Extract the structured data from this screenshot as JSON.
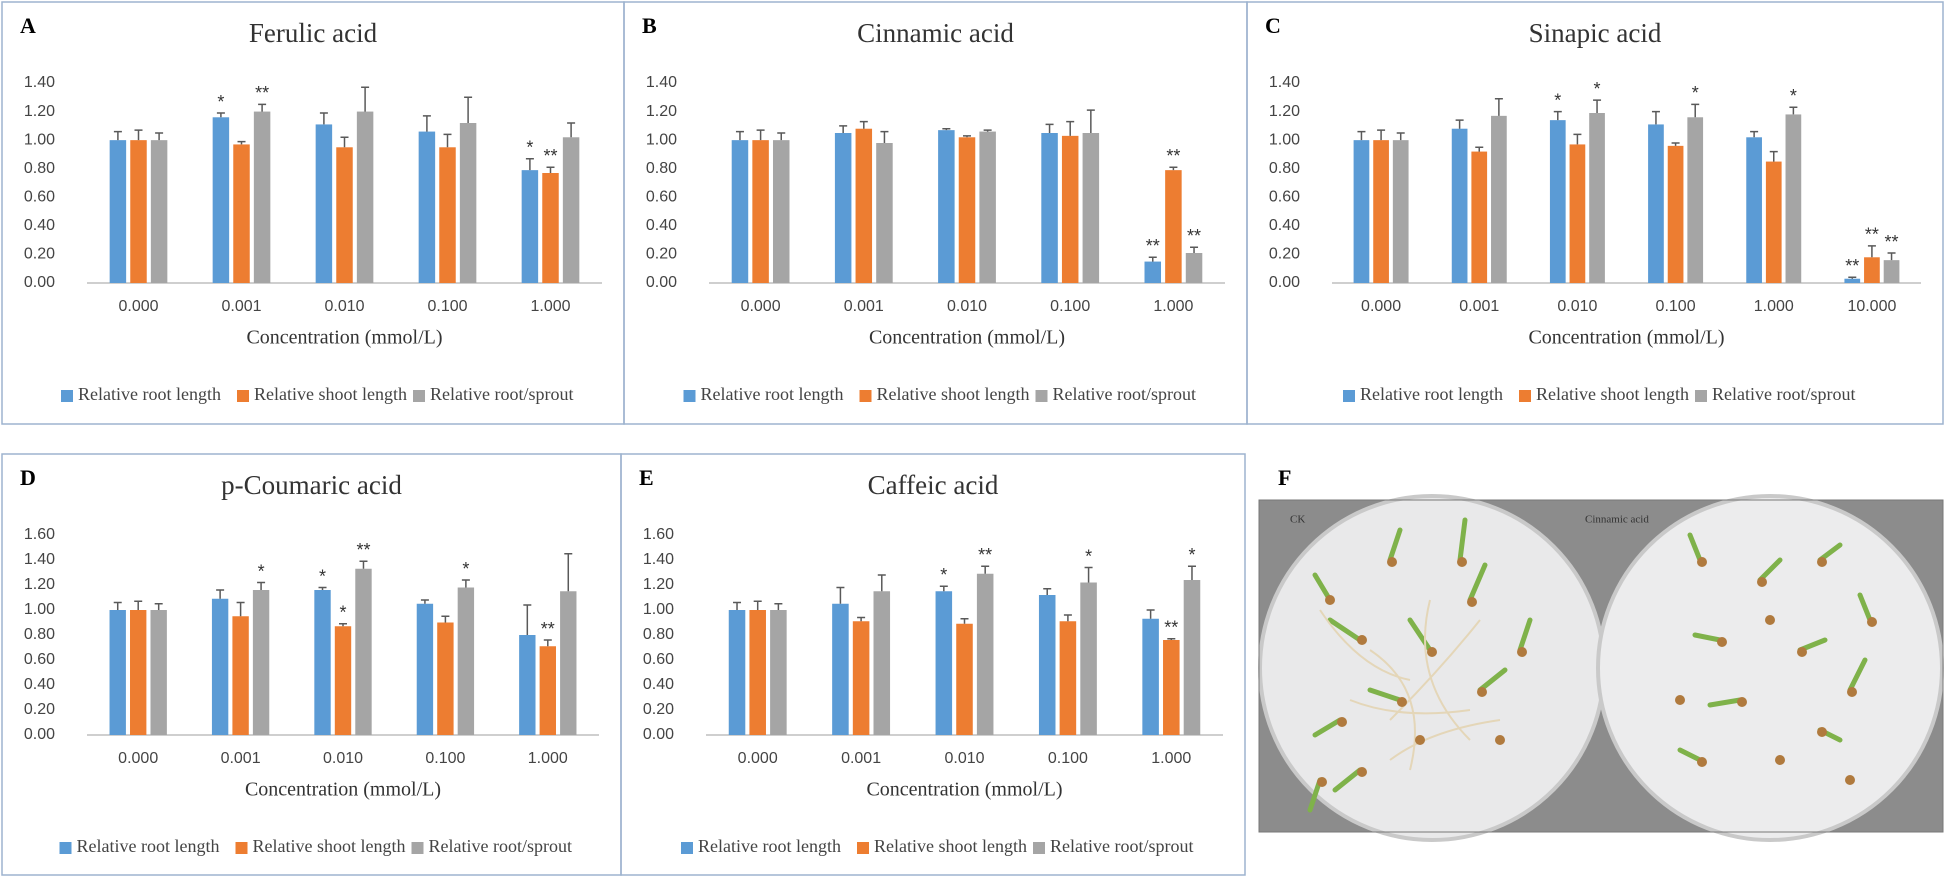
{
  "chart_data": [
    {
      "type": "bar",
      "label": "A",
      "title": "Ferulic acid",
      "xlabel": "Concentration (mmol/L)",
      "categories": [
        "0.000",
        "0.001",
        "0.010",
        "0.100",
        "1.000"
      ],
      "ylim": [
        0,
        1.4
      ],
      "yticks": [
        {
          "value": 0,
          "label": "0.00"
        },
        {
          "value": 0.2,
          "label": "0.20"
        },
        {
          "value": 0.4,
          "label": "0.40"
        },
        {
          "value": 0.6,
          "label": "0.60"
        },
        {
          "value": 0.8,
          "label": "0.80"
        },
        {
          "value": 1.0,
          "label": "1.00"
        },
        {
          "value": 1.2,
          "label": "1.20"
        },
        {
          "value": 1.4,
          "label": "1.40"
        }
      ],
      "series": [
        {
          "name": "Relative root length",
          "color": "#5b9bd5",
          "values": [
            1.0,
            1.16,
            1.11,
            1.06,
            0.79
          ],
          "errors": [
            0.06,
            0.03,
            0.08,
            0.11,
            0.08
          ],
          "annotations": [
            null,
            "*",
            null,
            null,
            "*"
          ]
        },
        {
          "name": "Relative shoot length",
          "color": "#ed7d31",
          "values": [
            1.0,
            0.97,
            0.95,
            0.95,
            0.77
          ],
          "errors": [
            0.07,
            0.02,
            0.07,
            0.09,
            0.04
          ],
          "annotations": [
            null,
            null,
            null,
            null,
            "**"
          ]
        },
        {
          "name": "Relative root/sprout",
          "color": "#a5a5a5",
          "values": [
            1.0,
            1.2,
            1.2,
            1.12,
            1.02
          ],
          "errors": [
            0.05,
            0.05,
            0.17,
            0.18,
            0.1
          ],
          "annotations": [
            null,
            "**",
            null,
            null,
            null
          ]
        }
      ]
    },
    {
      "type": "bar",
      "label": "B",
      "title": "Cinnamic acid",
      "xlabel": "Concentration (mmol/L)",
      "categories": [
        "0.000",
        "0.001",
        "0.010",
        "0.100",
        "1.000"
      ],
      "ylim": [
        0,
        1.4
      ],
      "yticks": [
        {
          "value": 0,
          "label": "0.00"
        },
        {
          "value": 0.2,
          "label": "0.20"
        },
        {
          "value": 0.4,
          "label": "0.40"
        },
        {
          "value": 0.6,
          "label": "0.60"
        },
        {
          "value": 0.8,
          "label": "0.80"
        },
        {
          "value": 1.0,
          "label": "1.00"
        },
        {
          "value": 1.2,
          "label": "1.20"
        },
        {
          "value": 1.4,
          "label": "1.40"
        }
      ],
      "series": [
        {
          "name": "Relative root length",
          "color": "#5b9bd5",
          "values": [
            1.0,
            1.05,
            1.07,
            1.05,
            0.15
          ],
          "errors": [
            0.06,
            0.05,
            0.01,
            0.06,
            0.03
          ],
          "annotations": [
            null,
            null,
            null,
            null,
            "**"
          ]
        },
        {
          "name": "Relative shoot length",
          "color": "#ed7d31",
          "values": [
            1.0,
            1.08,
            1.02,
            1.03,
            0.79
          ],
          "errors": [
            0.07,
            0.05,
            0.01,
            0.1,
            0.02
          ],
          "annotations": [
            null,
            null,
            null,
            null,
            "**"
          ]
        },
        {
          "name": "Relative root/sprout",
          "color": "#a5a5a5",
          "values": [
            1.0,
            0.98,
            1.06,
            1.05,
            0.21
          ],
          "errors": [
            0.05,
            0.08,
            0.01,
            0.16,
            0.04
          ],
          "annotations": [
            null,
            null,
            null,
            null,
            "**"
          ]
        }
      ]
    },
    {
      "type": "bar",
      "label": "C",
      "title": "Sinapic acid",
      "xlabel": "Concentration (mmol/L)",
      "categories": [
        "0.000",
        "0.001",
        "0.010",
        "0.100",
        "1.000",
        "10.000"
      ],
      "ylim": [
        0,
        1.4
      ],
      "yticks": [
        {
          "value": 0,
          "label": "0.00"
        },
        {
          "value": 0.2,
          "label": "0.20"
        },
        {
          "value": 0.4,
          "label": "0.40"
        },
        {
          "value": 0.6,
          "label": "0.60"
        },
        {
          "value": 0.8,
          "label": "0.80"
        },
        {
          "value": 1.0,
          "label": "1.00"
        },
        {
          "value": 1.2,
          "label": "1.20"
        },
        {
          "value": 1.4,
          "label": "1.40"
        }
      ],
      "series": [
        {
          "name": "Relative root length",
          "color": "#5b9bd5",
          "values": [
            1.0,
            1.08,
            1.14,
            1.11,
            1.02,
            0.03
          ],
          "errors": [
            0.06,
            0.06,
            0.06,
            0.09,
            0.04,
            0.01
          ],
          "annotations": [
            null,
            null,
            "*",
            null,
            null,
            "**"
          ]
        },
        {
          "name": "Relative shoot length",
          "color": "#ed7d31",
          "values": [
            1.0,
            0.92,
            0.97,
            0.96,
            0.85,
            0.18
          ],
          "errors": [
            0.07,
            0.03,
            0.07,
            0.02,
            0.07,
            0.08
          ],
          "annotations": [
            null,
            null,
            null,
            null,
            null,
            "**"
          ]
        },
        {
          "name": "Relative root/sprout",
          "color": "#a5a5a5",
          "values": [
            1.0,
            1.17,
            1.19,
            1.16,
            1.18,
            0.16
          ],
          "errors": [
            0.05,
            0.12,
            0.09,
            0.09,
            0.05,
            0.05
          ],
          "annotations": [
            null,
            null,
            "*",
            "*",
            "*",
            "**"
          ]
        }
      ]
    },
    {
      "type": "bar",
      "label": "D",
      "title": "p-Coumaric acid",
      "xlabel": "Concentration (mmol/L)",
      "categories": [
        "0.000",
        "0.001",
        "0.010",
        "0.100",
        "1.000"
      ],
      "ylim": [
        0,
        1.6
      ],
      "yticks": [
        {
          "value": 0,
          "label": "0.00"
        },
        {
          "value": 0.2,
          "label": "0.20"
        },
        {
          "value": 0.4,
          "label": "0.40"
        },
        {
          "value": 0.6,
          "label": "0.60"
        },
        {
          "value": 0.8,
          "label": "0.80"
        },
        {
          "value": 1.0,
          "label": "1.00"
        },
        {
          "value": 1.2,
          "label": "1.20"
        },
        {
          "value": 1.4,
          "label": "1.40"
        },
        {
          "value": 1.6,
          "label": "1.60"
        }
      ],
      "series": [
        {
          "name": "Relative root length",
          "color": "#5b9bd5",
          "values": [
            1.0,
            1.09,
            1.16,
            1.05,
            0.8
          ],
          "errors": [
            0.06,
            0.07,
            0.02,
            0.03,
            0.24
          ],
          "annotations": [
            null,
            null,
            "*",
            null,
            null
          ]
        },
        {
          "name": "Relative shoot length",
          "color": "#ed7d31",
          "values": [
            1.0,
            0.95,
            0.87,
            0.9,
            0.71
          ],
          "errors": [
            0.07,
            0.11,
            0.02,
            0.05,
            0.05
          ],
          "annotations": [
            null,
            null,
            "*",
            null,
            "**"
          ]
        },
        {
          "name": "Relative root/sprout",
          "color": "#a5a5a5",
          "values": [
            1.0,
            1.16,
            1.33,
            1.18,
            1.15
          ],
          "errors": [
            0.05,
            0.06,
            0.06,
            0.06,
            0.3
          ],
          "annotations": [
            null,
            "*",
            "**",
            "*",
            null
          ]
        }
      ]
    },
    {
      "type": "bar",
      "label": "E",
      "title": "Caffeic acid",
      "xlabel": "Concentration (mmol/L)",
      "categories": [
        "0.000",
        "0.001",
        "0.010",
        "0.100",
        "1.000"
      ],
      "ylim": [
        0,
        1.6
      ],
      "yticks": [
        {
          "value": 0,
          "label": "0.00"
        },
        {
          "value": 0.2,
          "label": "0.20"
        },
        {
          "value": 0.4,
          "label": "0.40"
        },
        {
          "value": 0.6,
          "label": "0.60"
        },
        {
          "value": 0.8,
          "label": "0.80"
        },
        {
          "value": 1.0,
          "label": "1.00"
        },
        {
          "value": 1.2,
          "label": "1.20"
        },
        {
          "value": 1.4,
          "label": "1.40"
        },
        {
          "value": 1.6,
          "label": "1.60"
        }
      ],
      "series": [
        {
          "name": "Relative root length",
          "color": "#5b9bd5",
          "values": [
            1.0,
            1.05,
            1.15,
            1.12,
            0.93
          ],
          "errors": [
            0.06,
            0.13,
            0.04,
            0.05,
            0.07
          ],
          "annotations": [
            null,
            null,
            "*",
            null,
            null
          ]
        },
        {
          "name": "Relative shoot length",
          "color": "#ed7d31",
          "values": [
            1.0,
            0.91,
            0.89,
            0.91,
            0.76
          ],
          "errors": [
            0.07,
            0.03,
            0.04,
            0.05,
            0.01
          ],
          "annotations": [
            null,
            null,
            null,
            null,
            "**"
          ]
        },
        {
          "name": "Relative root/sprout",
          "color": "#a5a5a5",
          "values": [
            1.0,
            1.15,
            1.29,
            1.22,
            1.24
          ],
          "errors": [
            0.05,
            0.13,
            0.06,
            0.12,
            0.11
          ],
          "annotations": [
            null,
            null,
            "**",
            "*",
            "*"
          ]
        }
      ]
    }
  ],
  "photo": {
    "label": "F",
    "left_label": "CK",
    "right_label": "Cinnamic acid"
  }
}
